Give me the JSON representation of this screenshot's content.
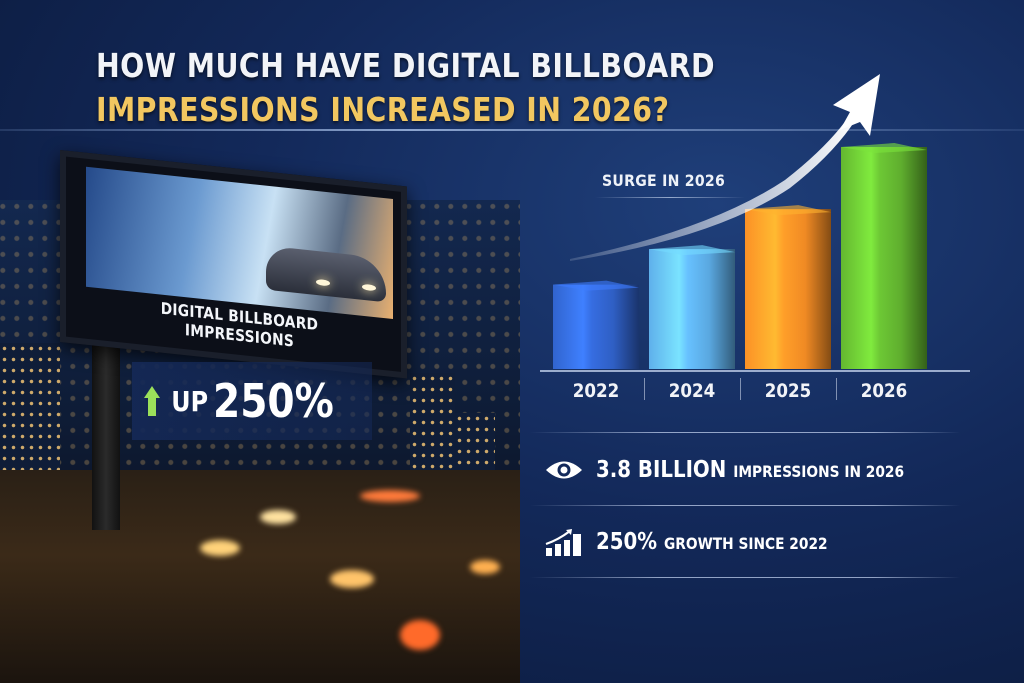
{
  "header": {
    "title_line1": "HOW MUCH HAVE DIGITAL BILLBOARD",
    "title_line2": "IMPRESSIONS INCREASED IN 2026?",
    "title_color_line1": "#f2f4f8",
    "title_color_line2": "#f2c760"
  },
  "billboard": {
    "caption": "DIGITAL BILLBOARD IMPRESSIONS",
    "up_label": "UP",
    "up_value": "250%",
    "up_arrow_color": "#9be05a",
    "up_arrow_icon": "arrow-up-icon"
  },
  "chart_data": {
    "type": "bar",
    "title": "",
    "annotation": "SURGE IN 2026",
    "categories": [
      "2022",
      "2024",
      "2025",
      "2026"
    ],
    "values": [
      38,
      54,
      72,
      100
    ],
    "value_note": "relative heights estimated; no axis shown",
    "colors": [
      "#2f5fc4",
      "#5aa8e0",
      "#f08a24",
      "#5fae2e"
    ],
    "xlabel": "",
    "ylabel": "",
    "ylim": [
      0,
      100
    ],
    "grid": false,
    "legend": "none",
    "trend_arrow": true
  },
  "stats": [
    {
      "icon": "eye-icon",
      "value": "3.8 BILLION",
      "text": "IMPRESSIONS IN 2026"
    },
    {
      "icon": "growth-chart-icon",
      "value": "250%",
      "text": "GROWTH SINCE 2022"
    }
  ]
}
